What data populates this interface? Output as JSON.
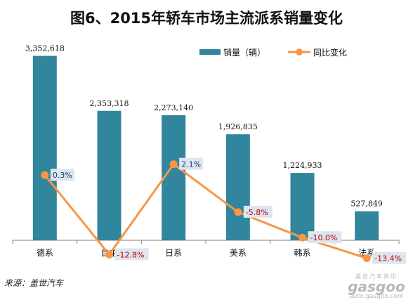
{
  "chart_data": {
    "type": "bar",
    "title": "图6、2015年轿车市场主流派系销量变化",
    "categories": [
      "德系",
      "自主",
      "日系",
      "美系",
      "韩系",
      "法系"
    ],
    "series": [
      {
        "name": "销量（辆）",
        "type": "bar",
        "color": "#31859c",
        "values": [
          3352618,
          2353318,
          2273140,
          1926835,
          1224933,
          527849
        ],
        "labels": [
          "3,352,618",
          "2,353,318",
          "2,273,140",
          "1,926,835",
          "1,224,933",
          "527,849"
        ]
      },
      {
        "name": "同比变化",
        "type": "line",
        "color": "#f79646",
        "values": [
          0.3,
          -12.8,
          2.1,
          -5.8,
          -10.0,
          -13.4
        ],
        "labels": [
          "0.3%",
          "-12.8%",
          "2.1%",
          "-5.8%",
          "-10.0%",
          "-13.4%"
        ]
      }
    ],
    "ylim": [
      0,
      3500000
    ],
    "y2lim": [
      -16,
      6
    ],
    "legend_position": "top-right",
    "grid": false
  },
  "footer": {
    "source": "来源：盖世汽车"
  },
  "watermark": {
    "text_cn": "盖世汽车资讯",
    "logo": "gasgoo",
    "url": "auto.gasgoo.com"
  },
  "colors": {
    "axis": "#808080",
    "pct_positive": "#1f3864",
    "pct_negative": "#c00000",
    "pct_label_bg": "#dce6f1"
  }
}
